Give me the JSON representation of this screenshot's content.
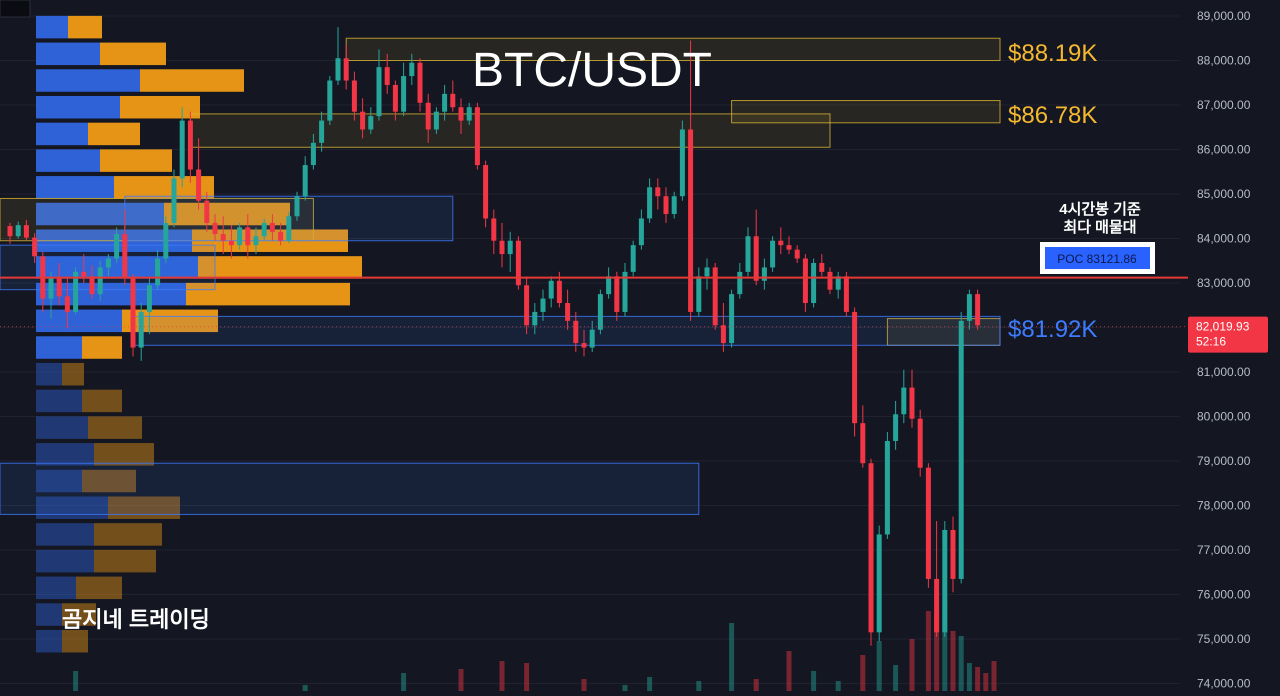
{
  "chart_data": {
    "type": "candlestick",
    "title": "BTC/USDT",
    "watermark": "곰지네 트레이딩",
    "y_axis": {
      "ticks": [
        89000,
        88000,
        87000,
        86000,
        85000,
        84000,
        83000,
        82000,
        81000,
        80000,
        79000,
        78000,
        77000,
        76000,
        75000,
        74000
      ],
      "tick_labels": [
        "89,000.00",
        "88,000.00",
        "87,000.00",
        "86,000.00",
        "85,000.00",
        "84,000.00",
        "83,000.00",
        "82,000.00",
        "81,000.00",
        "80,000.00",
        "79,000.00",
        "78,000.00",
        "77,000.00",
        "76,000.00",
        "75,000.00",
        "74,000.00"
      ],
      "ylim": [
        73900,
        89200
      ]
    },
    "current_price": {
      "value": 82019.93,
      "label": "82,019.93",
      "countdown": "52:16",
      "color": "#f23645"
    },
    "poc": {
      "value": 83121.86,
      "label": "POC  83121.86",
      "note_line1": "4시간봉 기준",
      "note_line2": "최다 매물대",
      "line_color": "#e53935",
      "badge_color": "#2962ff"
    },
    "levels": [
      {
        "value": 88190,
        "label": "$88.19K",
        "color": "#f5b82e"
      },
      {
        "value": 86780,
        "label": "$86.78K",
        "color": "#f5b82e"
      },
      {
        "value": 81920,
        "label": "$81.92K",
        "color": "#3d7bff"
      }
    ],
    "candles": [
      [
        84280,
        84350,
        83880,
        84050
      ],
      [
        84050,
        84380,
        84000,
        84300
      ],
      [
        84300,
        84420,
        83950,
        84020
      ],
      [
        84020,
        84120,
        83450,
        83600
      ],
      [
        83600,
        83700,
        82350,
        82650
      ],
      [
        82650,
        83250,
        82200,
        83100
      ],
      [
        83100,
        83450,
        82500,
        82700
      ],
      [
        82700,
        83150,
        81980,
        82350
      ],
      [
        82350,
        83350,
        82300,
        83250
      ],
      [
        83250,
        83650,
        83000,
        83150
      ],
      [
        83150,
        83400,
        82650,
        82750
      ],
      [
        82750,
        83500,
        82600,
        83350
      ],
      [
        83350,
        83650,
        83150,
        83550
      ],
      [
        83550,
        84250,
        83450,
        84100
      ],
      [
        84100,
        84650,
        82950,
        83100
      ],
      [
        83100,
        83200,
        81350,
        81550
      ],
      [
        81550,
        82550,
        81250,
        82350
      ],
      [
        82350,
        83150,
        81850,
        82950
      ],
      [
        82950,
        83750,
        82850,
        83550
      ],
      [
        83550,
        84500,
        83450,
        84350
      ],
      [
        84350,
        85550,
        84250,
        85350
      ],
      [
        85350,
        86950,
        85150,
        86650
      ],
      [
        86650,
        86850,
        85250,
        85550
      ],
      [
        85550,
        86250,
        84650,
        84850
      ],
      [
        84850,
        85050,
        84150,
        84350
      ],
      [
        84350,
        84550,
        83950,
        84100
      ],
      [
        84100,
        84500,
        83650,
        83950
      ],
      [
        83950,
        84300,
        83550,
        83850
      ],
      [
        83850,
        84350,
        83750,
        84250
      ],
      [
        84250,
        84550,
        83550,
        83850
      ],
      [
        83850,
        84250,
        83650,
        84050
      ],
      [
        84050,
        84450,
        83950,
        84350
      ],
      [
        84350,
        84550,
        83950,
        84150
      ],
      [
        84150,
        84350,
        83850,
        83950
      ],
      [
        83950,
        84600,
        83900,
        84500
      ],
      [
        84500,
        85050,
        84400,
        84950
      ],
      [
        84950,
        85850,
        84850,
        85650
      ],
      [
        85650,
        86350,
        85550,
        86150
      ],
      [
        86150,
        86850,
        85950,
        86650
      ],
      [
        86650,
        87650,
        86550,
        87550
      ],
      [
        87550,
        88750,
        87450,
        88050
      ],
      [
        88050,
        88350,
        87350,
        87550
      ],
      [
        87550,
        87750,
        86650,
        86850
      ],
      [
        86850,
        87150,
        86250,
        86450
      ],
      [
        86450,
        86950,
        86350,
        86750
      ],
      [
        86750,
        88250,
        86650,
        87850
      ],
      [
        87850,
        88150,
        87250,
        87450
      ],
      [
        87450,
        87550,
        86650,
        86850
      ],
      [
        86850,
        87950,
        86750,
        87650
      ],
      [
        87650,
        88150,
        87450,
        87950
      ],
      [
        87950,
        88050,
        86850,
        87050
      ],
      [
        87050,
        87250,
        86150,
        86450
      ],
      [
        86450,
        86950,
        86350,
        86850
      ],
      [
        86850,
        87450,
        86650,
        87250
      ],
      [
        87250,
        87550,
        86850,
        86950
      ],
      [
        86950,
        87150,
        86350,
        86650
      ],
      [
        86650,
        87050,
        86550,
        86950
      ],
      [
        86950,
        87050,
        85550,
        85650
      ],
      [
        85650,
        85750,
        84250,
        84450
      ],
      [
        84450,
        84650,
        83650,
        83950
      ],
      [
        83950,
        84350,
        83350,
        83650
      ],
      [
        83650,
        84150,
        83250,
        83950
      ],
      [
        83950,
        84050,
        82850,
        82950
      ],
      [
        82950,
        83150,
        81850,
        82050
      ],
      [
        82050,
        82550,
        81850,
        82350
      ],
      [
        82350,
        82850,
        82150,
        82650
      ],
      [
        82650,
        83150,
        82450,
        83050
      ],
      [
        83050,
        83250,
        82450,
        82550
      ],
      [
        82550,
        82850,
        81950,
        82150
      ],
      [
        82150,
        82350,
        81450,
        81650
      ],
      [
        81650,
        81950,
        81350,
        81550
      ],
      [
        81550,
        82150,
        81450,
        81950
      ],
      [
        81950,
        82850,
        81850,
        82750
      ],
      [
        82750,
        83350,
        82650,
        83150
      ],
      [
        83150,
        83250,
        82150,
        82350
      ],
      [
        82350,
        83450,
        82250,
        83250
      ],
      [
        83250,
        83950,
        83150,
        83850
      ],
      [
        83850,
        84650,
        83750,
        84450
      ],
      [
        84450,
        85350,
        84350,
        85150
      ],
      [
        85150,
        85350,
        84650,
        84950
      ],
      [
        84950,
        85150,
        84350,
        84550
      ],
      [
        84550,
        85050,
        84450,
        84950
      ],
      [
        84950,
        86650,
        84850,
        86450
      ],
      [
        86450,
        88450,
        82150,
        82350
      ],
      [
        82350,
        83350,
        82250,
        83150
      ],
      [
        83150,
        83550,
        82850,
        83350
      ],
      [
        83350,
        83450,
        81950,
        82050
      ],
      [
        82050,
        82550,
        81450,
        81650
      ],
      [
        81650,
        82850,
        81550,
        82750
      ],
      [
        82750,
        83450,
        82650,
        83250
      ],
      [
        83250,
        84250,
        83150,
        84050
      ],
      [
        84050,
        84650,
        82950,
        83050
      ],
      [
        83050,
        83550,
        82850,
        83350
      ],
      [
        83350,
        84050,
        83250,
        83950
      ],
      [
        83950,
        84250,
        83650,
        83850
      ],
      [
        83850,
        84050,
        83650,
        83750
      ],
      [
        83750,
        83850,
        83450,
        83550
      ],
      [
        83550,
        83650,
        82350,
        82550
      ],
      [
        82550,
        83550,
        82450,
        83450
      ],
      [
        83450,
        83650,
        83150,
        83250
      ],
      [
        83250,
        83350,
        82750,
        82850
      ],
      [
        82850,
        83250,
        82650,
        83150
      ],
      [
        83150,
        83250,
        82250,
        82350
      ],
      [
        82350,
        82450,
        79550,
        79850
      ],
      [
        79850,
        80250,
        78850,
        78950
      ],
      [
        78950,
        79050,
        74850,
        75150
      ],
      [
        75150,
        77550,
        74950,
        77350
      ],
      [
        77350,
        79650,
        77250,
        79450
      ],
      [
        79450,
        80350,
        79250,
        80050
      ],
      [
        80050,
        81050,
        79850,
        80650
      ],
      [
        80650,
        81050,
        79750,
        79950
      ],
      [
        79950,
        80150,
        78650,
        78850
      ],
      [
        78850,
        78950,
        76150,
        76350
      ],
      [
        76350,
        77650,
        75050,
        75150
      ],
      [
        75150,
        77650,
        75050,
        77450
      ],
      [
        77450,
        77750,
        76050,
        76350
      ],
      [
        76350,
        82350,
        76250,
        82150
      ],
      [
        82150,
        82850,
        81950,
        82750
      ],
      [
        82750,
        82850,
        81950,
        82050
      ]
    ],
    "volume_profile": [
      {
        "price": 88750,
        "buy": 32,
        "sell": 34
      },
      {
        "price": 88150,
        "buy": 64,
        "sell": 66
      },
      {
        "price": 87550,
        "buy": 104,
        "sell": 104
      },
      {
        "price": 86950,
        "buy": 84,
        "sell": 80
      },
      {
        "price": 86350,
        "buy": 52,
        "sell": 52
      },
      {
        "price": 85750,
        "buy": 64,
        "sell": 72
      },
      {
        "price": 85150,
        "buy": 78,
        "sell": 100
      },
      {
        "price": 84550,
        "buy": 128,
        "sell": 126
      },
      {
        "price": 83950,
        "buy": 156,
        "sell": 156
      },
      {
        "price": 83350,
        "buy": 162,
        "sell": 164
      },
      {
        "price": 82750,
        "buy": 150,
        "sell": 164
      },
      {
        "price": 82150,
        "buy": 86,
        "sell": 96
      },
      {
        "price": 81550,
        "buy": 46,
        "sell": 40
      },
      {
        "price": 80950,
        "buy": 26,
        "sell": 22
      },
      {
        "price": 80350,
        "buy": 46,
        "sell": 40
      },
      {
        "price": 79750,
        "buy": 52,
        "sell": 54
      },
      {
        "price": 79150,
        "buy": 58,
        "sell": 60
      },
      {
        "price": 78550,
        "buy": 46,
        "sell": 54
      },
      {
        "price": 77950,
        "buy": 72,
        "sell": 72
      },
      {
        "price": 77350,
        "buy": 58,
        "sell": 68
      },
      {
        "price": 76750,
        "buy": 58,
        "sell": 62
      },
      {
        "price": 76150,
        "buy": 40,
        "sell": 46
      },
      {
        "price": 75550,
        "buy": 26,
        "sell": 34
      },
      {
        "price": 74950,
        "buy": 26,
        "sell": 26
      }
    ],
    "zones": [
      {
        "price_low": 88000,
        "price_high": 88500,
        "x0_idx": 41,
        "x1_idx": 160,
        "kind": "resistance",
        "color": "#d9b431"
      },
      {
        "price_low": 86600,
        "price_high": 87100,
        "x0_idx": 88,
        "x1_idx": 160,
        "kind": "resistance",
        "color": "#d9b431"
      },
      {
        "price_low": 86050,
        "price_high": 86800,
        "x0_idx": 22,
        "x1_idx": 100,
        "kind": "resistance",
        "color": "#d9b431"
      },
      {
        "price_low": 83950,
        "price_high": 84900,
        "x0_idx": -5,
        "x1_idx": 37,
        "kind": "resistance",
        "color": "#d9b431"
      },
      {
        "price_low": 81600,
        "price_high": 82200,
        "x0_idx": 107,
        "x1_idx": 121,
        "kind": "resistance",
        "color": "#d9b431"
      },
      {
        "price_low": 83950,
        "price_high": 84950,
        "x0_idx": 14,
        "x1_idx": 54,
        "kind": "support",
        "color": "#3d7bff"
      },
      {
        "price_low": 82850,
        "price_high": 83850,
        "x0_idx": -5,
        "x1_idx": 25,
        "kind": "support",
        "color": "#3d7bff"
      },
      {
        "price_low": 81600,
        "price_high": 82250,
        "x0_idx": 15,
        "x1_idx": 121,
        "kind": "support",
        "color": "#3d7bff"
      },
      {
        "price_low": 77800,
        "price_high": 78950,
        "x0_idx": -5,
        "x1_idx": 84,
        "kind": "support",
        "color": "#3d7bff"
      }
    ],
    "volumes": [
      [
        8,
        20
      ],
      [
        36,
        6
      ],
      [
        48,
        18
      ],
      [
        55,
        22
      ],
      [
        60,
        30
      ],
      [
        63,
        28
      ],
      [
        70,
        12
      ],
      [
        75,
        6
      ],
      [
        78,
        14
      ],
      [
        84,
        10
      ],
      [
        88,
        68
      ],
      [
        91,
        12
      ],
      [
        95,
        40
      ],
      [
        98,
        20
      ],
      [
        101,
        10
      ],
      [
        104,
        36
      ],
      [
        106,
        50
      ],
      [
        108,
        26
      ],
      [
        110,
        52
      ],
      [
        112,
        80
      ],
      [
        113,
        78
      ],
      [
        114,
        90
      ],
      [
        115,
        60
      ],
      [
        116,
        55
      ],
      [
        117,
        28
      ],
      [
        118,
        24
      ],
      [
        119,
        18
      ],
      [
        120,
        30
      ]
    ],
    "colors": {
      "up": "#26a69a",
      "down": "#f23645",
      "buy": "#2e62d6",
      "sell": "#e69416"
    }
  }
}
